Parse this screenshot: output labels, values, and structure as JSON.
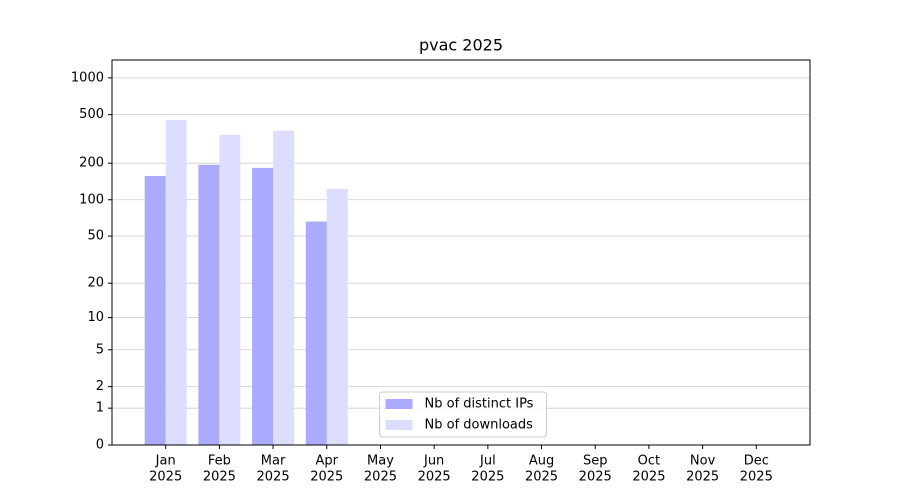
{
  "chart_data": {
    "type": "bar",
    "title": "pvac 2025",
    "scale": "symlog",
    "categories": [
      [
        "Jan",
        "2025"
      ],
      [
        "Feb",
        "2025"
      ],
      [
        "Mar",
        "2025"
      ],
      [
        "Apr",
        "2025"
      ],
      [
        "May",
        "2025"
      ],
      [
        "Jun",
        "2025"
      ],
      [
        "Jul",
        "2025"
      ],
      [
        "Aug",
        "2025"
      ],
      [
        "Sep",
        "2025"
      ],
      [
        "Oct",
        "2025"
      ],
      [
        "Nov",
        "2025"
      ],
      [
        "Dec",
        "2025"
      ]
    ],
    "series": [
      {
        "name": "Nb of distinct IPs",
        "color": "#aaaaff",
        "values": [
          157,
          194,
          183,
          66,
          null,
          null,
          null,
          null,
          null,
          null,
          null,
          null
        ]
      },
      {
        "name": "Nb of downloads",
        "color": "#ddddff",
        "values": [
          453,
          342,
          369,
          123,
          null,
          null,
          null,
          null,
          null,
          null,
          null,
          null
        ]
      }
    ],
    "ylim": [
      0,
      1400
    ],
    "yticks": [
      0,
      1,
      2,
      5,
      10,
      20,
      50,
      100,
      200,
      500,
      1000
    ],
    "grid": true,
    "legend": "lower center"
  }
}
